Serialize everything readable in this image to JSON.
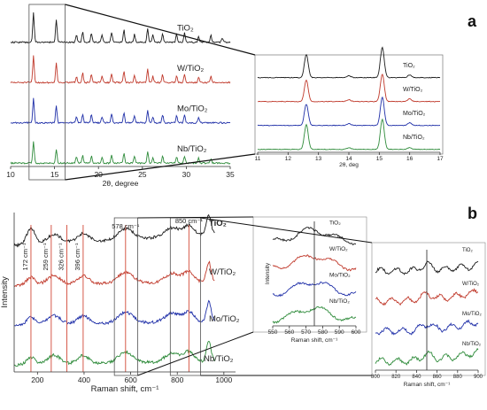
{
  "colors": {
    "black": "#1a1a1a",
    "red": "#c0392b",
    "blue": "#1f2fa8",
    "green": "#2e8b3a",
    "redline": "#d65a4a",
    "axis": "#333333"
  },
  "panel_labels": {
    "a": "a",
    "b": "b"
  },
  "chart_data": [
    {
      "id": "xrd-main",
      "type": "line",
      "xlabel": "2θ, degree",
      "xlim": [
        10,
        35
      ],
      "xticks": [
        "10",
        "15",
        "20",
        "25",
        "30",
        "35"
      ],
      "series": [
        {
          "name": "TiO2",
          "label": "TiO₂",
          "color": "#1a1a1a",
          "peaks": [
            [
              12.6,
              34
            ],
            [
              15.2,
              26
            ],
            [
              17.5,
              8
            ],
            [
              18.2,
              12
            ],
            [
              19.2,
              10
            ],
            [
              20.4,
              8
            ],
            [
              21.5,
              11
            ],
            [
              22.9,
              14
            ],
            [
              24.1,
              9
            ],
            [
              25.6,
              16
            ],
            [
              26.2,
              8
            ],
            [
              27.3,
              10
            ],
            [
              28.9,
              9
            ],
            [
              29.8,
              11
            ],
            [
              31.4,
              7
            ],
            [
              32.8,
              8
            ],
            [
              34.1,
              5
            ]
          ]
        },
        {
          "name": "W/TiO2",
          "label": "W/TiO₂",
          "color": "#c0392b",
          "peaks": [
            [
              12.6,
              30
            ],
            [
              15.2,
              23
            ],
            [
              17.5,
              7
            ],
            [
              18.2,
              11
            ],
            [
              19.2,
              9
            ],
            [
              20.4,
              7
            ],
            [
              21.5,
              10
            ],
            [
              22.9,
              13
            ],
            [
              24.1,
              8
            ],
            [
              25.6,
              15
            ],
            [
              26.2,
              7
            ],
            [
              27.3,
              9
            ],
            [
              28.9,
              8
            ],
            [
              29.8,
              10
            ],
            [
              31.4,
              6
            ],
            [
              32.8,
              7
            ]
          ]
        },
        {
          "name": "Mo/TiO2",
          "label": "Mo/TiO₂",
          "color": "#1f2fa8",
          "peaks": [
            [
              12.6,
              28
            ],
            [
              15.2,
              20
            ],
            [
              17.5,
              7
            ],
            [
              18.2,
              10
            ],
            [
              19.2,
              9
            ],
            [
              20.4,
              7
            ],
            [
              21.5,
              10
            ],
            [
              22.9,
              12
            ],
            [
              24.1,
              8
            ],
            [
              25.6,
              14
            ],
            [
              26.2,
              7
            ],
            [
              27.3,
              9
            ],
            [
              28.9,
              8
            ],
            [
              29.8,
              9
            ],
            [
              31.4,
              6
            ]
          ]
        },
        {
          "name": "Nb/TiO2",
          "label": "Nb/TiO₂",
          "color": "#2e8b3a",
          "peaks": [
            [
              12.6,
              25
            ],
            [
              15.2,
              16
            ],
            [
              17.5,
              8
            ],
            [
              18.2,
              9
            ],
            [
              19.2,
              8
            ],
            [
              20.4,
              7
            ],
            [
              21.5,
              9
            ],
            [
              22.9,
              11
            ],
            [
              24.1,
              8
            ],
            [
              25.6,
              13
            ],
            [
              26.2,
              7
            ],
            [
              27.3,
              8
            ],
            [
              28.9,
              7
            ],
            [
              29.8,
              8
            ],
            [
              31.4,
              6
            ],
            [
              32.8,
              5
            ]
          ]
        }
      ]
    },
    {
      "id": "xrd-zoom",
      "type": "line",
      "xlabel": "2θ, deg",
      "xlim": [
        11,
        17
      ],
      "xticks": [
        "11",
        "12",
        "13",
        "14",
        "15",
        "16",
        "17"
      ],
      "series": [
        {
          "name": "TiO2",
          "label": "TiO₂",
          "color": "#1a1a1a",
          "peaks": [
            [
              12.6,
              26
            ],
            [
              14.0,
              2
            ],
            [
              15.1,
              34
            ],
            [
              16.0,
              3
            ]
          ]
        },
        {
          "name": "W/TiO2",
          "label": "W/TiO₂",
          "color": "#c0392b",
          "peaks": [
            [
              12.6,
              24
            ],
            [
              14.0,
              2
            ],
            [
              15.1,
              31
            ],
            [
              16.0,
              3
            ]
          ]
        },
        {
          "name": "Mo/TiO2",
          "label": "Mo/TiO₂",
          "color": "#1f2fa8",
          "peaks": [
            [
              12.6,
              24
            ],
            [
              14.0,
              2
            ],
            [
              15.1,
              32
            ],
            [
              16.0,
              3
            ]
          ]
        },
        {
          "name": "Nb/TiO2",
          "label": "Nb/TiO₂",
          "color": "#2e8b3a",
          "peaks": [
            [
              12.6,
              28
            ],
            [
              14.0,
              2
            ],
            [
              15.1,
              34
            ],
            [
              16.0,
              2
            ]
          ]
        }
      ]
    },
    {
      "id": "raman-main",
      "type": "line",
      "xlabel": "Raman shift, cm⁻¹",
      "ylabel": "Intensity",
      "xlim": [
        100,
        1050
      ],
      "xticks": [
        "200",
        "400",
        "600",
        "800",
        "1000"
      ],
      "marker_lines": [
        172,
        259,
        326,
        396,
        578,
        850
      ],
      "annotations": [
        "172 cm⁻¹",
        "259 cm⁻¹",
        "326 cm⁻¹",
        "396 cm⁻¹",
        "578 cm⁻¹",
        "850 cm⁻¹"
      ],
      "series": [
        {
          "name": "TiO2",
          "label": "TiO₂",
          "color": "#1a1a1a"
        },
        {
          "name": "W/TiO2",
          "label": "W/TiO₂",
          "color": "#c0392b"
        },
        {
          "name": "Mo/TiO2",
          "label": "Mo/TiO₂",
          "color": "#1f2fa8"
        },
        {
          "name": "Nb/TiO2",
          "label": "Nb/TiO₂",
          "color": "#2e8b3a"
        }
      ]
    },
    {
      "id": "raman-zoom1",
      "type": "line",
      "xlabel": "Raman shift, cm⁻¹",
      "ylabel": "Intensity",
      "xlim": [
        550,
        600
      ],
      "xticks": [
        "550",
        "560",
        "570",
        "580",
        "590",
        "600"
      ],
      "marker_lines": [
        575
      ],
      "series": [
        {
          "name": "TiO2",
          "label": "TiO₂",
          "color": "#1a1a1a"
        },
        {
          "name": "W/TiO2",
          "label": "W/TiO₂",
          "color": "#c0392b"
        },
        {
          "name": "Mo/TiO2",
          "label": "Mo/TiO₂",
          "color": "#1f2fa8"
        },
        {
          "name": "Nb/TiO2",
          "label": "Nb/TiO₂",
          "color": "#2e8b3a"
        }
      ]
    },
    {
      "id": "raman-zoom2",
      "type": "line",
      "xlabel": "Raman shift, cm⁻¹",
      "xlim": [
        800,
        900
      ],
      "xticks": [
        "800",
        "820",
        "840",
        "860",
        "880",
        "900"
      ],
      "marker_lines": [
        850
      ],
      "series": [
        {
          "name": "TiO2",
          "label": "TiO₂",
          "color": "#1a1a1a"
        },
        {
          "name": "W/TiO2",
          "label": "W/TiO₂",
          "color": "#c0392b"
        },
        {
          "name": "Mo/TiO2",
          "label": "Mo/TiO₂",
          "color": "#1f2fa8"
        },
        {
          "name": "Nb/TiO2",
          "label": "Nb/TiO₂",
          "color": "#2e8b3a"
        }
      ]
    }
  ]
}
